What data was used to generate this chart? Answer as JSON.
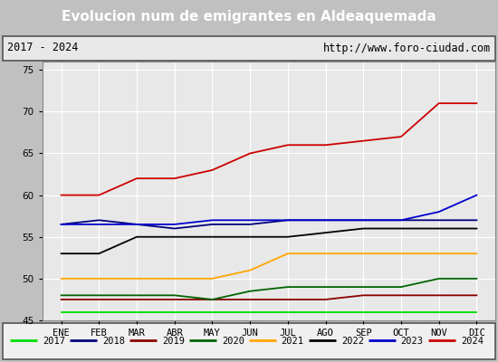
{
  "title": "Evolucion num de emigrantes en Aldeaquemada",
  "subtitle_left": "2017 - 2024",
  "subtitle_right": "http://www.foro-ciudad.com",
  "months": [
    "ENE",
    "FEB",
    "MAR",
    "ABR",
    "MAY",
    "JUN",
    "JUL",
    "AGO",
    "SEP",
    "OCT",
    "NOV",
    "DIC"
  ],
  "ylim": [
    45,
    76
  ],
  "yticks": [
    45,
    50,
    55,
    60,
    65,
    70,
    75
  ],
  "series": {
    "2017": {
      "color": "#00dd00",
      "values": [
        46,
        46,
        46,
        46,
        46,
        46,
        46,
        46,
        46,
        46,
        46,
        46
      ]
    },
    "2018": {
      "color": "#00007f",
      "values": [
        56.5,
        57,
        56.5,
        56,
        56.5,
        56.5,
        57,
        57,
        57,
        57,
        57,
        57
      ]
    },
    "2019": {
      "color": "#8b0000",
      "values": [
        47.5,
        47.5,
        47.5,
        47.5,
        47.5,
        47.5,
        47.5,
        47.5,
        48,
        48,
        48,
        48
      ]
    },
    "2020": {
      "color": "#006400",
      "values": [
        48,
        48,
        48,
        48,
        47.5,
        48.5,
        49,
        49,
        49,
        49,
        50,
        50
      ]
    },
    "2021": {
      "color": "#ffa500",
      "values": [
        50,
        50,
        50,
        50,
        50,
        51,
        53,
        53,
        53,
        53,
        53,
        53
      ]
    },
    "2022": {
      "color": "#000000",
      "values": [
        53,
        53,
        55,
        55,
        55,
        55,
        55,
        55.5,
        56,
        56,
        56,
        56
      ]
    },
    "2023": {
      "color": "#0000cc",
      "values": [
        56.5,
        56.5,
        56.5,
        56.5,
        57,
        57,
        57,
        57,
        57,
        57,
        58,
        60
      ]
    },
    "2024": {
      "color": "#cc0000",
      "values": [
        60,
        60,
        62,
        62,
        63,
        65,
        66,
        66,
        66.5,
        67,
        71,
        71
      ]
    }
  },
  "title_bg_color": "#4f86c6",
  "title_font_color": "#ffffff",
  "subtitle_bg_color": "#e8e8e8",
  "plot_bg_color": "#e8e8e8",
  "grid_color": "#ffffff",
  "legend_bg_color": "#f0f0f0"
}
